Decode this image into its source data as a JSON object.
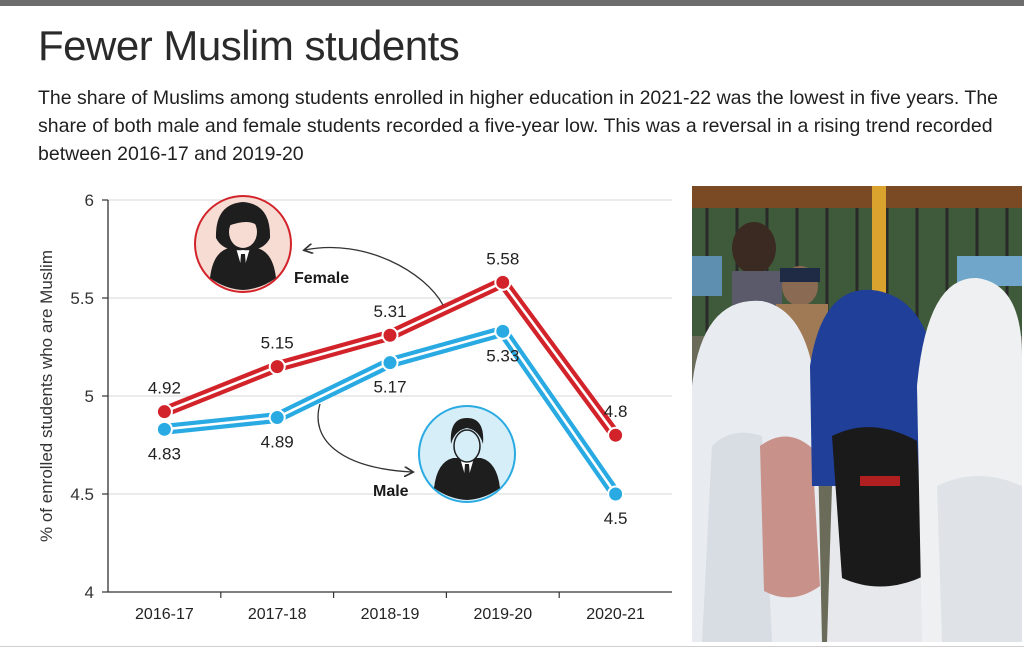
{
  "title": "Fewer Muslim students",
  "subtitle": "The share of Muslims among students enrolled in higher education in 2021-22 was the lowest in five years. The share of both male and female students recorded a five-year low. This was a reversal in a rising trend recorded between 2016-17 and 2019-20",
  "chart_data": {
    "type": "line",
    "title": "Fewer Muslim students",
    "ylabel": "% of enrolled students who are Muslim",
    "xlabel": "",
    "categories": [
      "2016-17",
      "2017-18",
      "2018-19",
      "2019-20",
      "2020-21"
    ],
    "ylim": [
      4,
      6
    ],
    "yticks": [
      4,
      4.5,
      5,
      5.5,
      6
    ],
    "ytick_labels": [
      "4",
      "4.5",
      "5",
      "5.5",
      "6"
    ],
    "grid": true,
    "legend": "inline icon labels",
    "series": [
      {
        "name": "Female",
        "color": "#d2232a",
        "values": [
          4.92,
          5.15,
          5.31,
          5.58,
          4.8
        ],
        "labels": [
          "4.92",
          "5.15",
          "5.31",
          "5.58",
          "4.8"
        ]
      },
      {
        "name": "Male",
        "color": "#29aae2",
        "values": [
          4.83,
          4.89,
          5.17,
          5.33,
          4.5
        ],
        "labels": [
          "4.83",
          "4.89",
          "5.17",
          "5.33",
          "4.5"
        ]
      }
    ]
  },
  "icons": {
    "female": "female-student-icon",
    "male": "male-student-icon"
  },
  "colors": {
    "female_icon_bg": "#f6dcd3",
    "male_icon_bg": "#d6eef8",
    "grid": "#d7d7d7"
  }
}
